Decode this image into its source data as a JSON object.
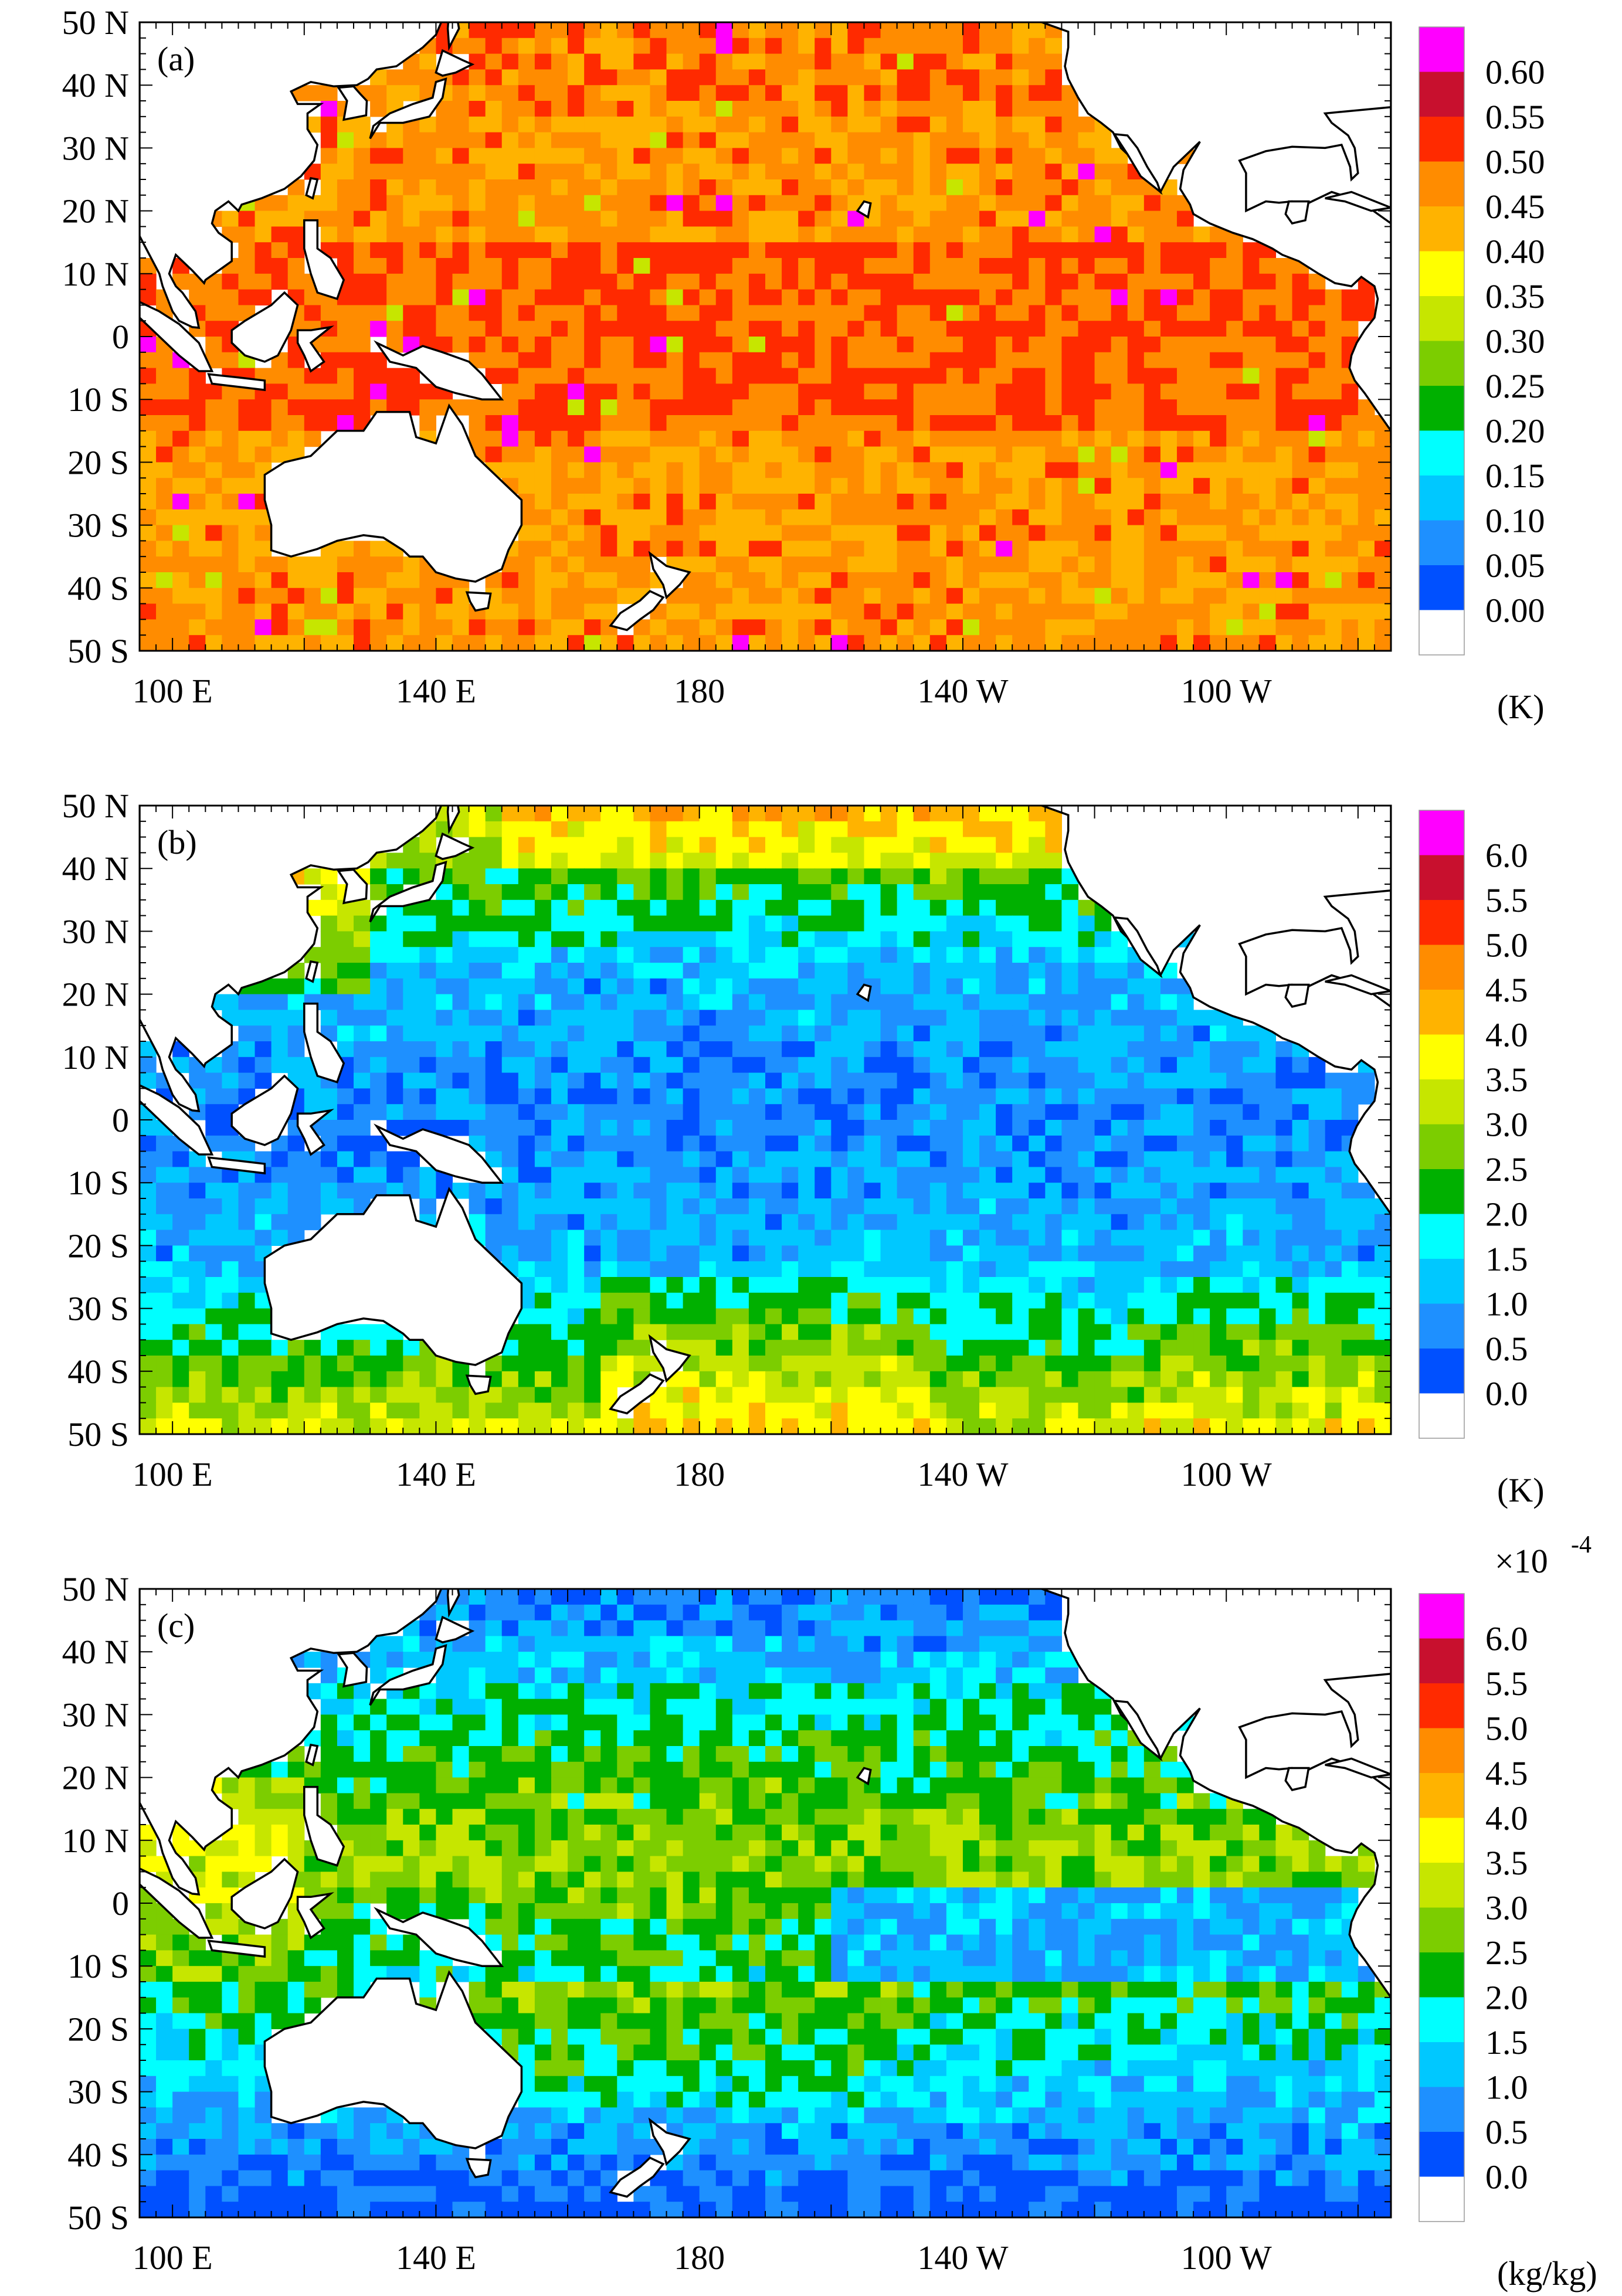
{
  "figure": {
    "panels": [
      {
        "id": "a",
        "label": "(a)",
        "unit": "(K)",
        "scale_note": "",
        "colorbar_ticks": [
          "0.60",
          "0.55",
          "0.50",
          "0.45",
          "0.40",
          "0.35",
          "0.30",
          "0.25",
          "0.20",
          "0.15",
          "0.10",
          "0.05",
          "0.00"
        ],
        "dominant_value_range": [
          0.4,
          0.55
        ]
      },
      {
        "id": "b",
        "label": "(b)",
        "unit": "(K)",
        "scale_note": "",
        "colorbar_ticks": [
          "6.0",
          "5.5",
          "5.0",
          "4.5",
          "4.0",
          "3.5",
          "3.0",
          "2.5",
          "2.0",
          "1.5",
          "1.0",
          "0.5",
          "0.0"
        ],
        "dominant_value_range": [
          0.5,
          4.0
        ]
      },
      {
        "id": "c",
        "label": "(c)",
        "unit": "(kg/kg)",
        "scale_note": "×10",
        "scale_exponent": "-4",
        "colorbar_ticks": [
          "6.0",
          "5.5",
          "5.0",
          "4.5",
          "4.0",
          "3.5",
          "3.0",
          "2.5",
          "2.0",
          "1.5",
          "1.0",
          "0.5",
          "0.0"
        ],
        "dominant_value_range": [
          0.5,
          4.0
        ]
      }
    ],
    "x_ticks": [
      "100 E",
      "140 E",
      "180",
      "140 W",
      "100 W"
    ],
    "y_ticks": [
      "50 N",
      "40 N",
      "30 N",
      "20 N",
      "10 N",
      "0",
      "10 S",
      "20 S",
      "30 S",
      "40 S",
      "50 S"
    ],
    "map_extent": {
      "lon": [
        95,
        285
      ],
      "lat": [
        -50,
        50
      ]
    },
    "colorbar_colors": [
      "#ff00ff",
      "#c8102e",
      "#ff2a00",
      "#ff8c00",
      "#ffb300",
      "#ffff00",
      "#c6e600",
      "#7ccd00",
      "#00b000",
      "#00ffff",
      "#00c8ff",
      "#1e90ff",
      "#0050ff",
      "#ffffff"
    ],
    "land_color": "#ffffff",
    "coast_color": "#000000"
  }
}
